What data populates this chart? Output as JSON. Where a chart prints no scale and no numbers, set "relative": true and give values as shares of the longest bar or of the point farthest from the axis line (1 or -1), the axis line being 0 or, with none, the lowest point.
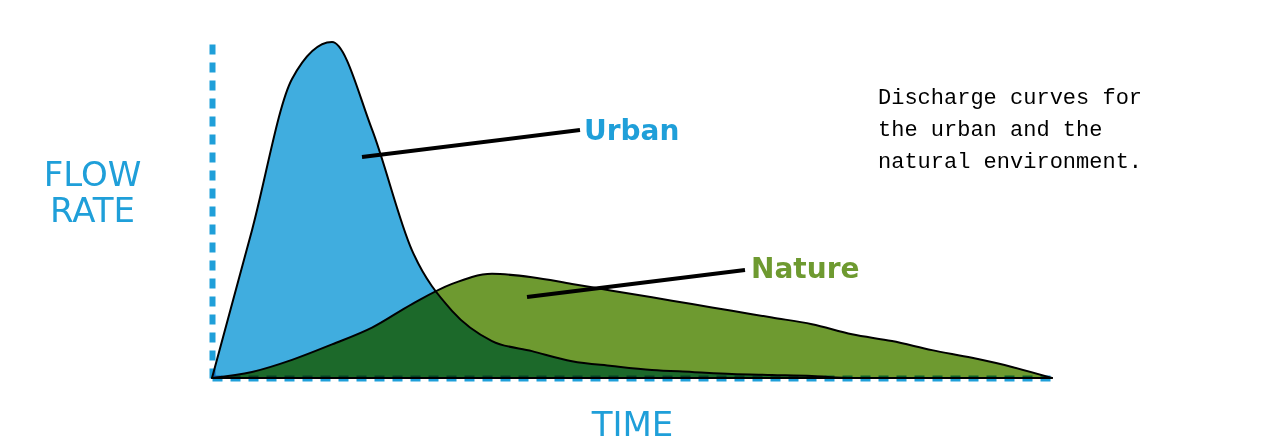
{
  "chart_data": {
    "type": "area",
    "relative": true,
    "xlabel": "TIME",
    "ylabel": "FLOW RATE",
    "categories": [
      null,
      null,
      null,
      null,
      null,
      null,
      null,
      null,
      null,
      null,
      null,
      null,
      null,
      null,
      null,
      null,
      null,
      null,
      null,
      null,
      null,
      null
    ],
    "series": [
      {
        "name": "Urban",
        "color": "#1f9fd9",
        "values": [
          0,
          0.44,
          0.89,
          1.0,
          0.74,
          0.38,
          0.2,
          0.11,
          0.08,
          0.05,
          0.036,
          0.024,
          0.018,
          0.012,
          0.009,
          0.006,
          0,
          0,
          0,
          0,
          0,
          0
        ]
      },
      {
        "name": "Nature",
        "color": "#6e9a30",
        "values": [
          0,
          0.018,
          0.054,
          0.1,
          0.15,
          0.22,
          0.28,
          0.31,
          0.3,
          0.28,
          0.26,
          0.24,
          0.22,
          0.2,
          0.18,
          0.16,
          0.13,
          0.11,
          0.083,
          0.06,
          0.033,
          0
        ]
      }
    ],
    "annotations": [
      "Discharge curves for the urban and the natural environment."
    ],
    "grid": false
  }
}
